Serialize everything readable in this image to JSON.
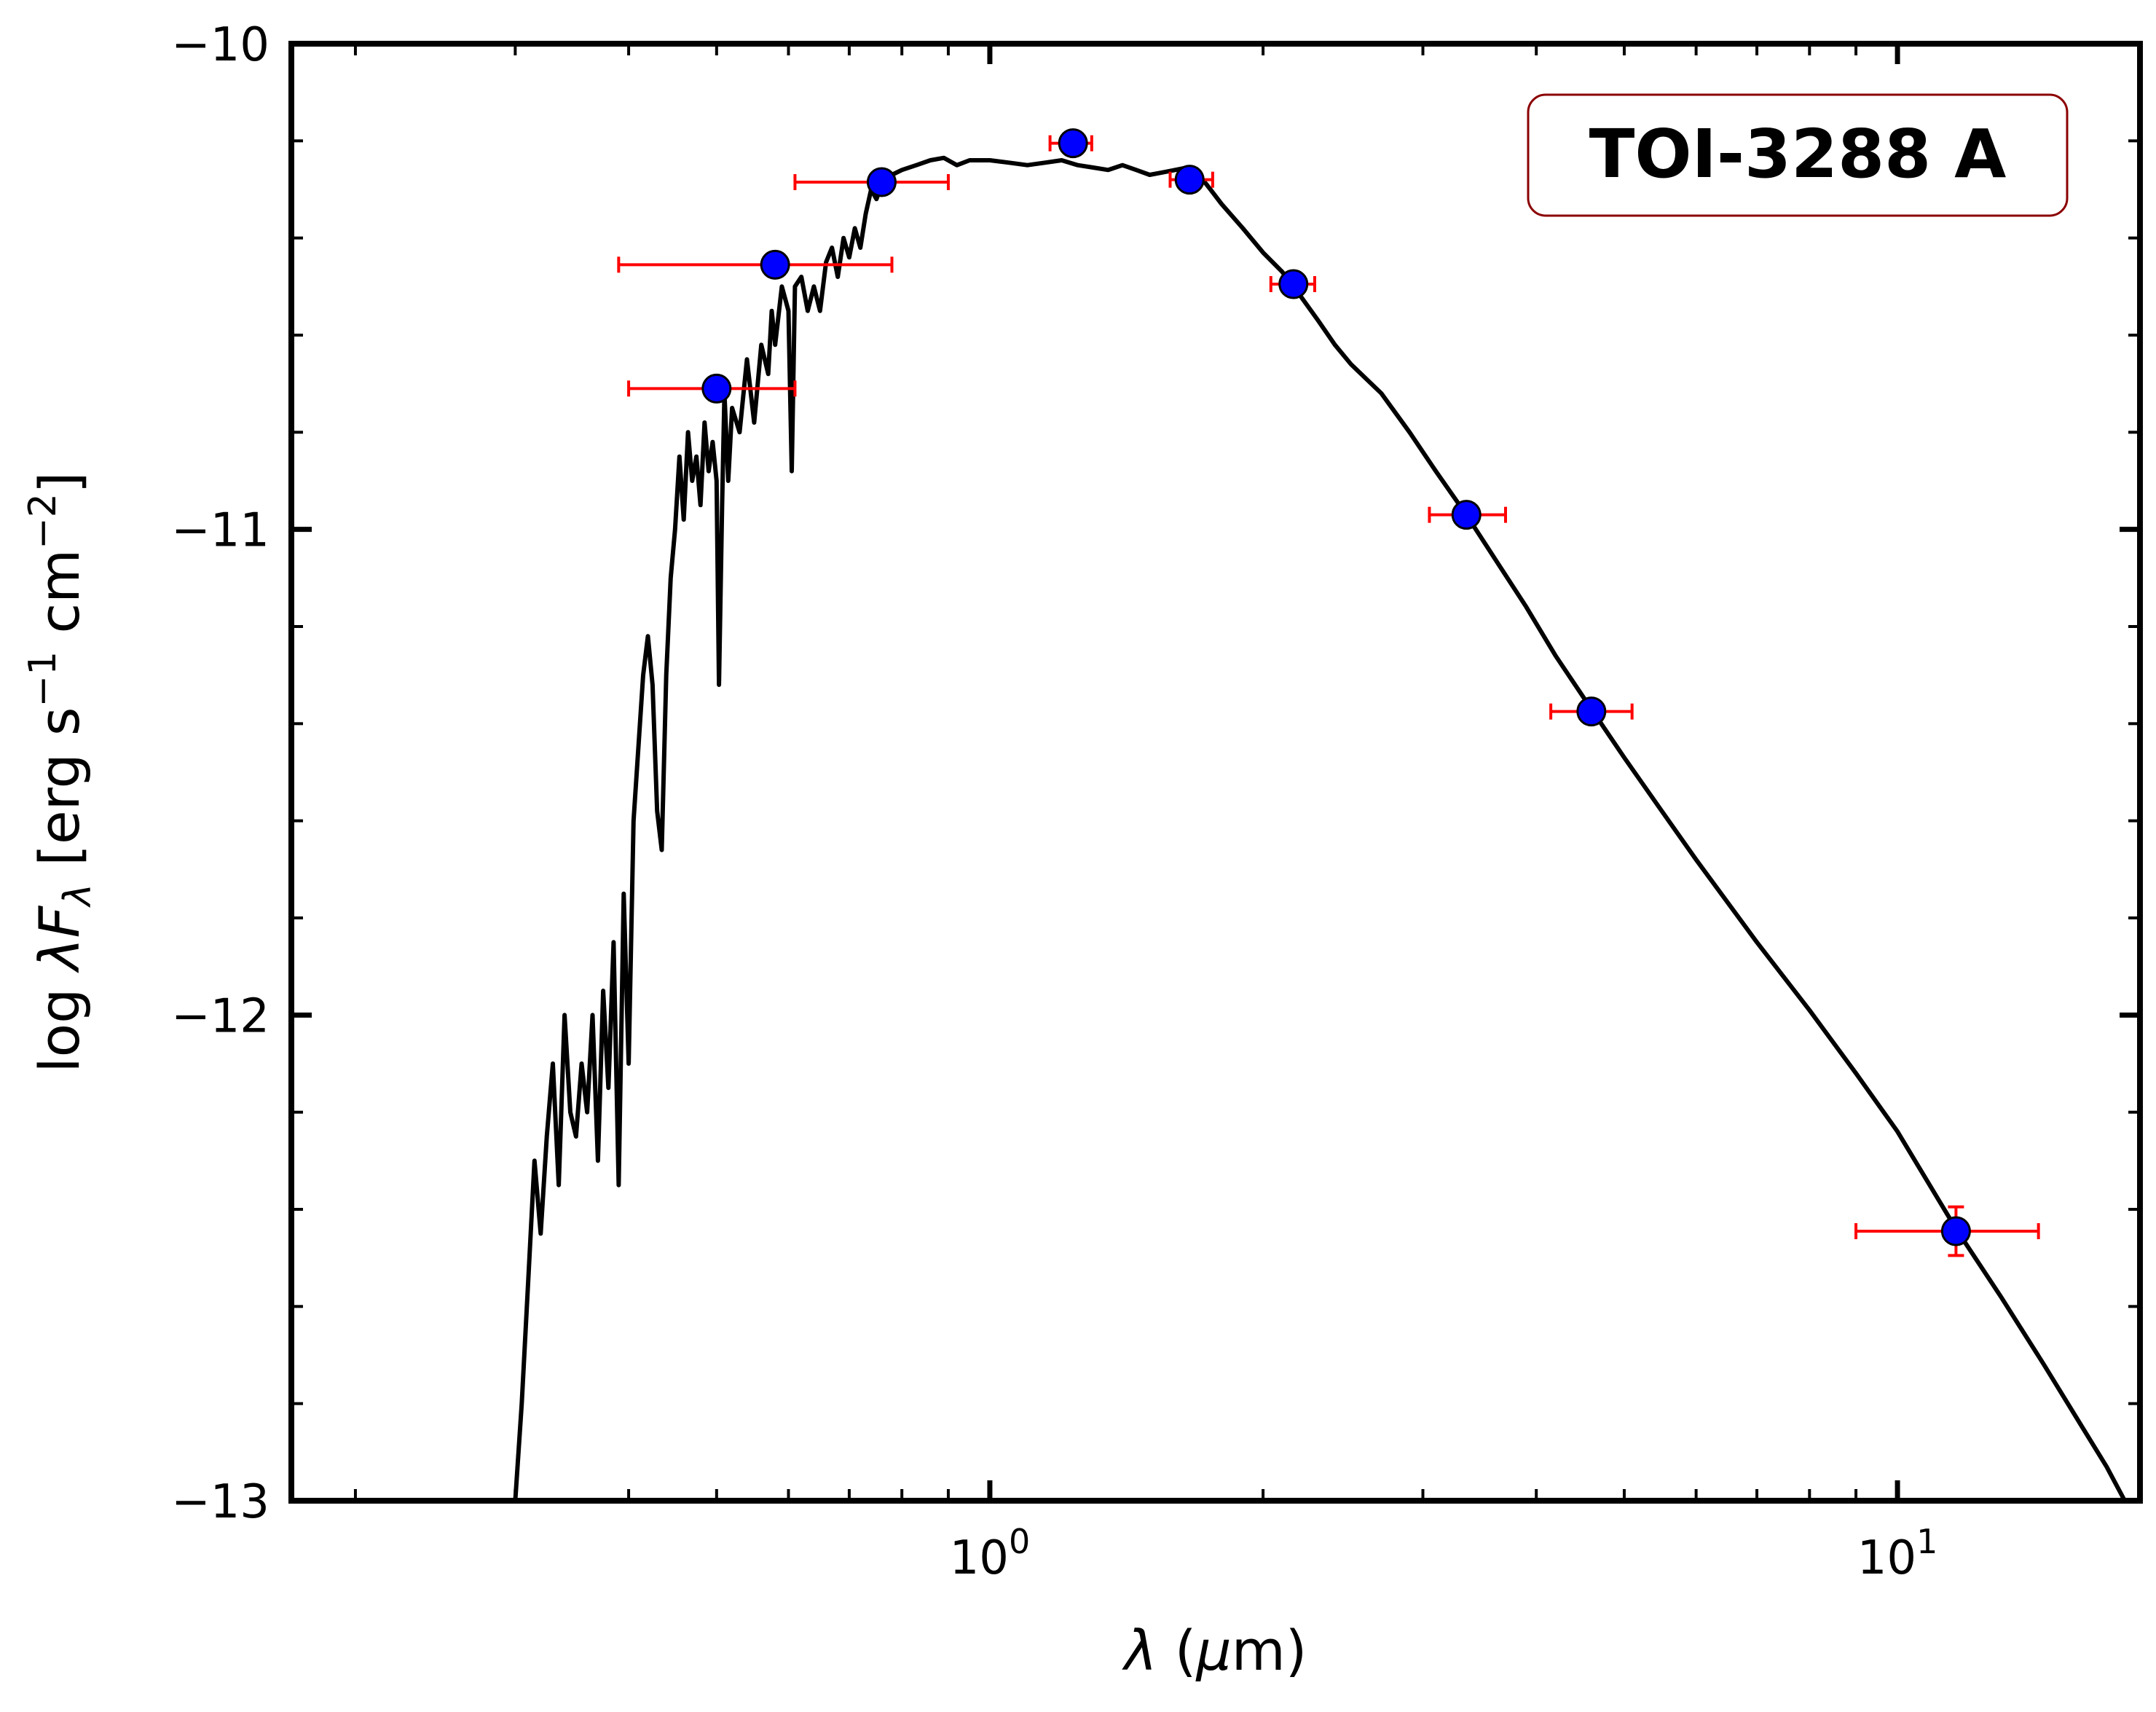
{
  "chart_data": {
    "type": "scatter",
    "title": "",
    "xscale": "log",
    "xlim": [
      0.17,
      18.5
    ],
    "ylim": [
      -13,
      -10
    ],
    "xlabel": "λ (μm)",
    "ylabel": "log λF_λ [erg s^−1 cm^−2]",
    "ylabel_parts": {
      "main": "log ",
      "lambda": "λ",
      "F": "F",
      "sub": "λ",
      "bracket": " [erg s",
      "exp1": "−1",
      "cm": " cm",
      "exp2": "−2",
      "close": "]"
    },
    "xlabel_parts": {
      "lambda": "λ",
      "rest": " (",
      "mu": "μ",
      "unit": "m)"
    },
    "x_tick_labels": [
      {
        "value": 1,
        "base": "10",
        "exp": "0"
      },
      {
        "value": 10,
        "base": "10",
        "exp": "1"
      }
    ],
    "y_tick_labels": [
      {
        "value": -10,
        "label": "−10"
      },
      {
        "value": -11,
        "label": "−11"
      },
      {
        "value": -12,
        "label": "−12"
      },
      {
        "value": -13,
        "label": "−13"
      }
    ],
    "annotation": {
      "text": "TOI-3288 A",
      "placement": "top-right",
      "color": "#8b0000"
    },
    "colors": {
      "model": "#000000",
      "points": "#0000ff",
      "errorbars": "#ff0000"
    },
    "photometry": [
      {
        "x": 0.5,
        "y": -10.71,
        "xerr_lo": 0.1,
        "xerr_hi": 0.11,
        "yerr": 0.0
      },
      {
        "x": 0.58,
        "y": -10.455,
        "xerr_lo": 0.19,
        "xerr_hi": 0.2,
        "yerr": 0.0
      },
      {
        "x": 0.76,
        "y": -10.285,
        "xerr_lo": 0.15,
        "xerr_hi": 0.14,
        "yerr": 0.0
      },
      {
        "x": 1.235,
        "y": -10.205,
        "xerr_lo": 0.07,
        "xerr_hi": 0.06,
        "yerr": 0.02
      },
      {
        "x": 1.66,
        "y": -10.28,
        "xerr_lo": 0.08,
        "xerr_hi": 0.1,
        "yerr": 0.02
      },
      {
        "x": 2.16,
        "y": -10.495,
        "xerr_lo": 0.12,
        "xerr_hi": 0.12,
        "yerr": 0.02
      },
      {
        "x": 3.35,
        "y": -10.97,
        "xerr_lo": 0.3,
        "xerr_hi": 0.35,
        "yerr": 0.02
      },
      {
        "x": 4.6,
        "y": -11.375,
        "xerr_lo": 0.45,
        "xerr_hi": 0.5,
        "yerr": 0.02
      },
      {
        "x": 11.6,
        "y": -12.445,
        "xerr_lo": 2.6,
        "xerr_hi": 2.7,
        "yerr": 0.05
      }
    ],
    "model_curve": [
      [
        0.3,
        -13.0
      ],
      [
        0.305,
        -12.8
      ],
      [
        0.31,
        -12.55
      ],
      [
        0.315,
        -12.3
      ],
      [
        0.32,
        -12.45
      ],
      [
        0.325,
        -12.25
      ],
      [
        0.33,
        -12.1
      ],
      [
        0.335,
        -12.35
      ],
      [
        0.34,
        -12.0
      ],
      [
        0.345,
        -12.2
      ],
      [
        0.35,
        -12.25
      ],
      [
        0.355,
        -12.1
      ],
      [
        0.36,
        -12.2
      ],
      [
        0.365,
        -12.0
      ],
      [
        0.37,
        -12.3
      ],
      [
        0.375,
        -11.95
      ],
      [
        0.38,
        -12.15
      ],
      [
        0.385,
        -11.85
      ],
      [
        0.39,
        -12.35
      ],
      [
        0.395,
        -11.75
      ],
      [
        0.4,
        -12.1
      ],
      [
        0.405,
        -11.6
      ],
      [
        0.41,
        -11.45
      ],
      [
        0.415,
        -11.3
      ],
      [
        0.42,
        -11.22
      ],
      [
        0.425,
        -11.32
      ],
      [
        0.43,
        -11.58
      ],
      [
        0.435,
        -11.66
      ],
      [
        0.44,
        -11.3
      ],
      [
        0.445,
        -11.1
      ],
      [
        0.45,
        -11.0
      ],
      [
        0.455,
        -10.85
      ],
      [
        0.46,
        -10.98
      ],
      [
        0.465,
        -10.8
      ],
      [
        0.47,
        -10.9
      ],
      [
        0.475,
        -10.85
      ],
      [
        0.48,
        -10.95
      ],
      [
        0.485,
        -10.78
      ],
      [
        0.49,
        -10.88
      ],
      [
        0.495,
        -10.82
      ],
      [
        0.5,
        -10.9
      ],
      [
        0.503,
        -11.32
      ],
      [
        0.507,
        -10.95
      ],
      [
        0.51,
        -10.72
      ],
      [
        0.515,
        -10.9
      ],
      [
        0.52,
        -10.75
      ],
      [
        0.53,
        -10.8
      ],
      [
        0.54,
        -10.65
      ],
      [
        0.55,
        -10.78
      ],
      [
        0.56,
        -10.62
      ],
      [
        0.57,
        -10.68
      ],
      [
        0.575,
        -10.55
      ],
      [
        0.58,
        -10.62
      ],
      [
        0.59,
        -10.5
      ],
      [
        0.6,
        -10.55
      ],
      [
        0.605,
        -10.88
      ],
      [
        0.61,
        -10.5
      ],
      [
        0.62,
        -10.48
      ],
      [
        0.63,
        -10.55
      ],
      [
        0.64,
        -10.5
      ],
      [
        0.65,
        -10.55
      ],
      [
        0.66,
        -10.45
      ],
      [
        0.67,
        -10.42
      ],
      [
        0.68,
        -10.48
      ],
      [
        0.69,
        -10.4
      ],
      [
        0.7,
        -10.44
      ],
      [
        0.71,
        -10.38
      ],
      [
        0.72,
        -10.42
      ],
      [
        0.73,
        -10.35
      ],
      [
        0.74,
        -10.3
      ],
      [
        0.75,
        -10.32
      ],
      [
        0.76,
        -10.29
      ],
      [
        0.78,
        -10.27
      ],
      [
        0.8,
        -10.26
      ],
      [
        0.83,
        -10.25
      ],
      [
        0.86,
        -10.24
      ],
      [
        0.89,
        -10.235
      ],
      [
        0.92,
        -10.25
      ],
      [
        0.95,
        -10.24
      ],
      [
        1.0,
        -10.24
      ],
      [
        1.05,
        -10.245
      ],
      [
        1.1,
        -10.25
      ],
      [
        1.15,
        -10.245
      ],
      [
        1.2,
        -10.24
      ],
      [
        1.25,
        -10.25
      ],
      [
        1.3,
        -10.255
      ],
      [
        1.35,
        -10.26
      ],
      [
        1.4,
        -10.25
      ],
      [
        1.45,
        -10.26
      ],
      [
        1.5,
        -10.27
      ],
      [
        1.55,
        -10.265
      ],
      [
        1.6,
        -10.26
      ],
      [
        1.65,
        -10.255
      ],
      [
        1.7,
        -10.27
      ],
      [
        1.75,
        -10.3
      ],
      [
        1.8,
        -10.33
      ],
      [
        1.9,
        -10.38
      ],
      [
        2.0,
        -10.43
      ],
      [
        2.1,
        -10.47
      ],
      [
        2.2,
        -10.52
      ],
      [
        2.3,
        -10.57
      ],
      [
        2.4,
        -10.62
      ],
      [
        2.5,
        -10.66
      ],
      [
        2.7,
        -10.72
      ],
      [
        2.9,
        -10.8
      ],
      [
        3.1,
        -10.88
      ],
      [
        3.35,
        -10.97
      ],
      [
        3.6,
        -11.06
      ],
      [
        3.9,
        -11.16
      ],
      [
        4.2,
        -11.26
      ],
      [
        4.6,
        -11.37
      ],
      [
        5.0,
        -11.47
      ],
      [
        5.5,
        -11.58
      ],
      [
        6.0,
        -11.68
      ],
      [
        7.0,
        -11.85
      ],
      [
        8.0,
        -11.99
      ],
      [
        9.0,
        -12.12
      ],
      [
        10.0,
        -12.24
      ],
      [
        11.6,
        -12.44
      ],
      [
        13.0,
        -12.58
      ],
      [
        14.5,
        -12.72
      ],
      [
        16.0,
        -12.85
      ],
      [
        17.0,
        -12.93
      ],
      [
        17.8,
        -13.0
      ]
    ]
  }
}
